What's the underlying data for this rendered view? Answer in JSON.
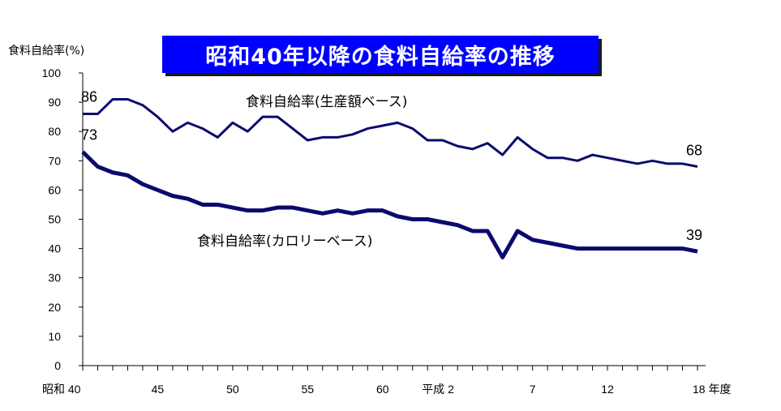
{
  "chart_data": {
    "type": "line",
    "title": "昭和40年以降の食料自給率の推移",
    "ylabel": "食料自給率(%)",
    "ylim": [
      0,
      100
    ],
    "yticks": [
      "0",
      "10",
      "20",
      "30",
      "40",
      "50",
      "60",
      "70",
      "80",
      "90",
      "100"
    ],
    "x_tick_labels": [
      "昭和 40",
      "45",
      "50",
      "55",
      "60",
      "平成 2",
      "7",
      "12",
      "18 年度"
    ],
    "x": [
      "S40",
      "S41",
      "S42",
      "S43",
      "S44",
      "S45",
      "S46",
      "S47",
      "S48",
      "S49",
      "S50",
      "S51",
      "S52",
      "S53",
      "S54",
      "S55",
      "S56",
      "S57",
      "S58",
      "S59",
      "S60",
      "S61",
      "S62",
      "S63",
      "H1",
      "H2",
      "H3",
      "H4",
      "H5",
      "H6",
      "H7",
      "H8",
      "H9",
      "H10",
      "H11",
      "H12",
      "H13",
      "H14",
      "H15",
      "H16",
      "H17",
      "H18"
    ],
    "series": [
      {
        "name": "食料自給率(生産額ベース)",
        "color": "#0a0a6e",
        "line": "thin",
        "values": [
          86,
          86,
          91,
          91,
          89,
          85,
          80,
          83,
          81,
          78,
          83,
          80,
          85,
          85,
          81,
          77,
          78,
          78,
          79,
          81,
          82,
          83,
          81,
          77,
          77,
          75,
          74,
          76,
          72,
          78,
          74,
          71,
          71,
          70,
          72,
          71,
          70,
          69,
          70,
          69,
          69,
          68
        ],
        "start_label": "86",
        "end_label": "68"
      },
      {
        "name": "食料自給率(カロリーベース)",
        "color": "#0a0a6e",
        "line": "thick",
        "values": [
          73,
          68,
          66,
          65,
          62,
          60,
          58,
          57,
          55,
          55,
          54,
          53,
          53,
          54,
          54,
          53,
          52,
          53,
          52,
          53,
          53,
          51,
          50,
          50,
          49,
          48,
          46,
          46,
          37,
          46,
          43,
          42,
          41,
          40,
          40,
          40,
          40,
          40,
          40,
          40,
          40,
          39
        ],
        "start_label": "73",
        "end_label": "39"
      }
    ],
    "grid": false
  }
}
